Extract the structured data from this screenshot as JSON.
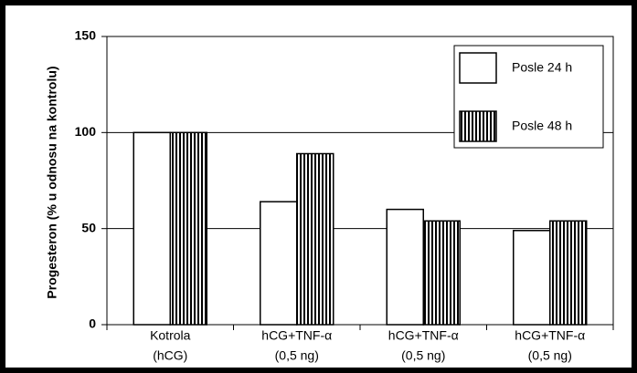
{
  "chart_data": {
    "type": "bar",
    "y_label": "Progesteron (% u odnosu na kontrolu)",
    "categories": [
      [
        "Kotrola",
        "(hCG)"
      ],
      [
        "hCG+TNF-α",
        "(0,5 ng)"
      ],
      [
        "hCG+TNF-α",
        "(0,5 ng)"
      ],
      [
        "hCG+TNF-α",
        "(0,5 ng)"
      ]
    ],
    "series": [
      {
        "name": "Posle 24 h",
        "color": "#ffffff",
        "hatch": "none",
        "values": [
          100,
          64,
          60,
          49
        ]
      },
      {
        "name": "Posle 48 h",
        "color": "#ffffff",
        "hatch": "vertical",
        "values": [
          100,
          89,
          54,
          54
        ]
      }
    ],
    "ylim": [
      0,
      150
    ],
    "yticks": [
      0,
      50,
      100,
      150
    ],
    "grid": true,
    "legend": "top-right"
  }
}
